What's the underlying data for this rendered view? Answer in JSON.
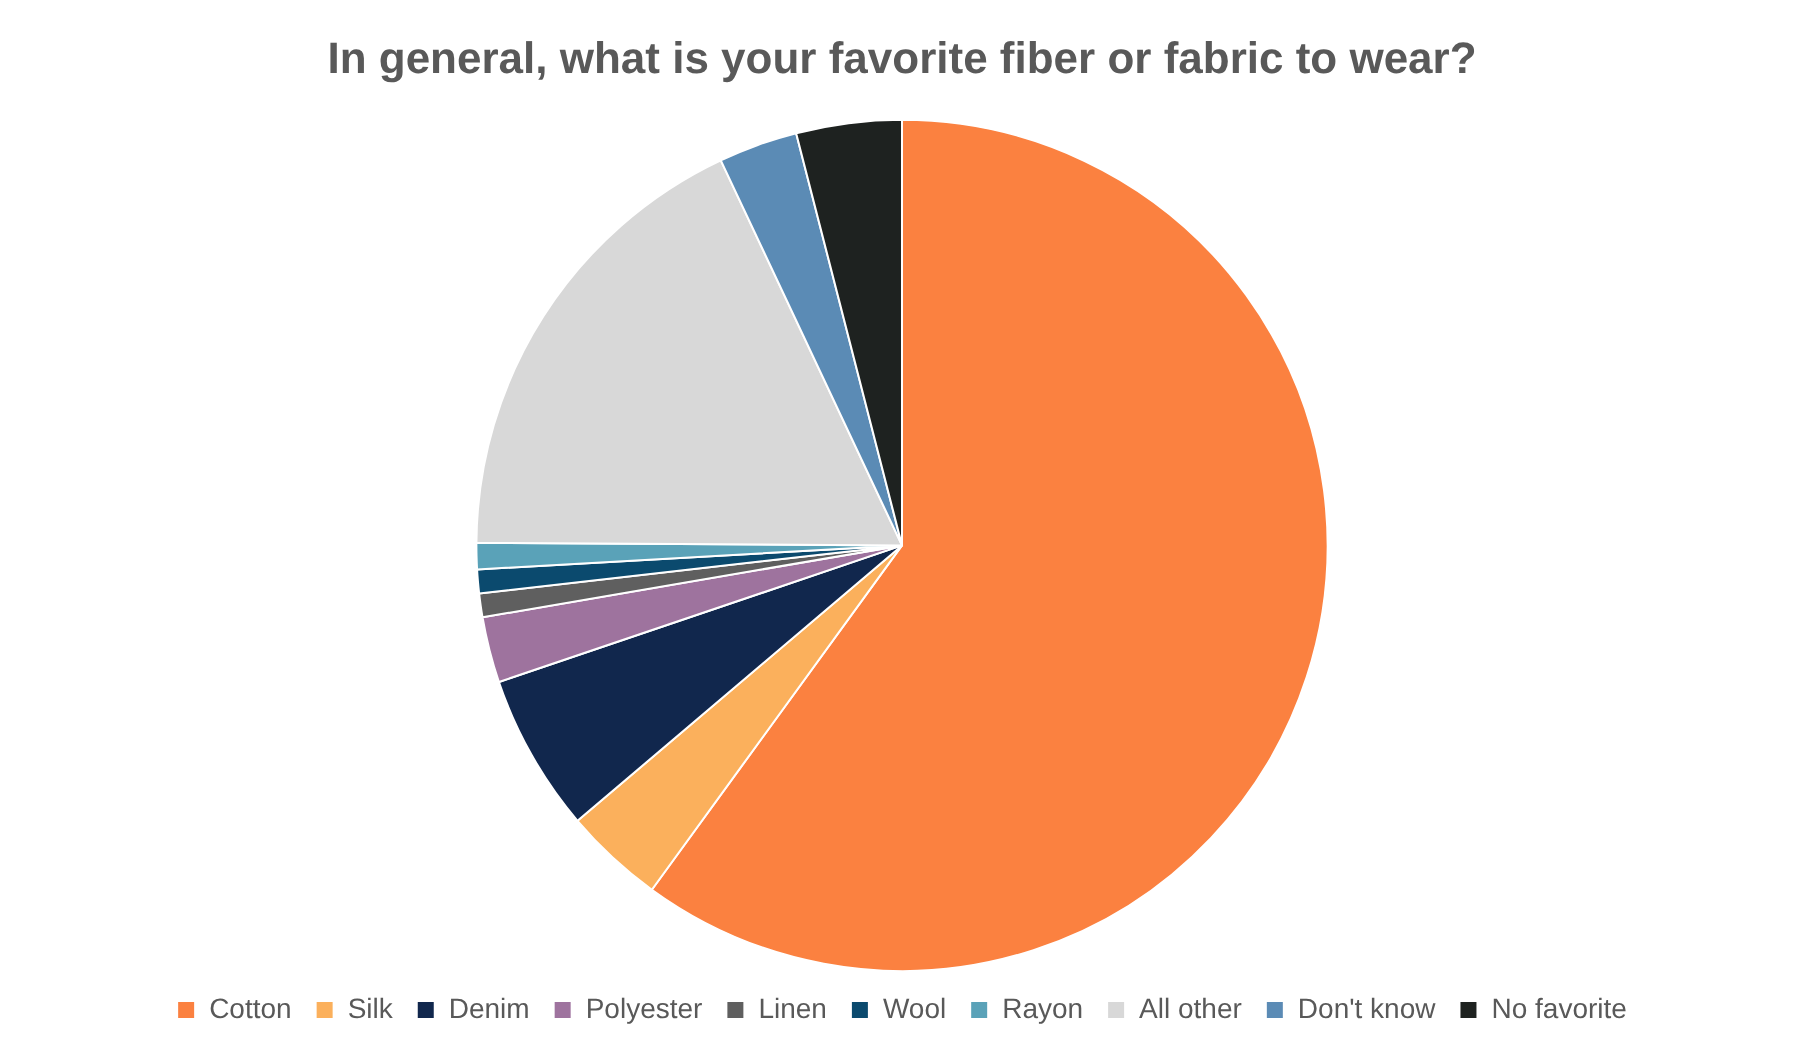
{
  "chart_data": {
    "type": "pie",
    "title": "In general, what is your favorite fiber or fabric to wear?",
    "categories": [
      "Cotton",
      "Silk",
      "Denim",
      "Polyester",
      "Linen",
      "Wool",
      "Rayon",
      "All other",
      "Don't know",
      "No favorite"
    ],
    "values": [
      60,
      3.8,
      6,
      2.5,
      0.9,
      0.9,
      1,
      17.9,
      3,
      4
    ],
    "colors": [
      "#fb8140",
      "#fbb05c",
      "#11274d",
      "#9e739e",
      "#5f5f5f",
      "#0b4a6e",
      "#5aa2b8",
      "#d8d8d8",
      "#5b8bb5",
      "#1e2220"
    ],
    "legend": "bottom"
  }
}
